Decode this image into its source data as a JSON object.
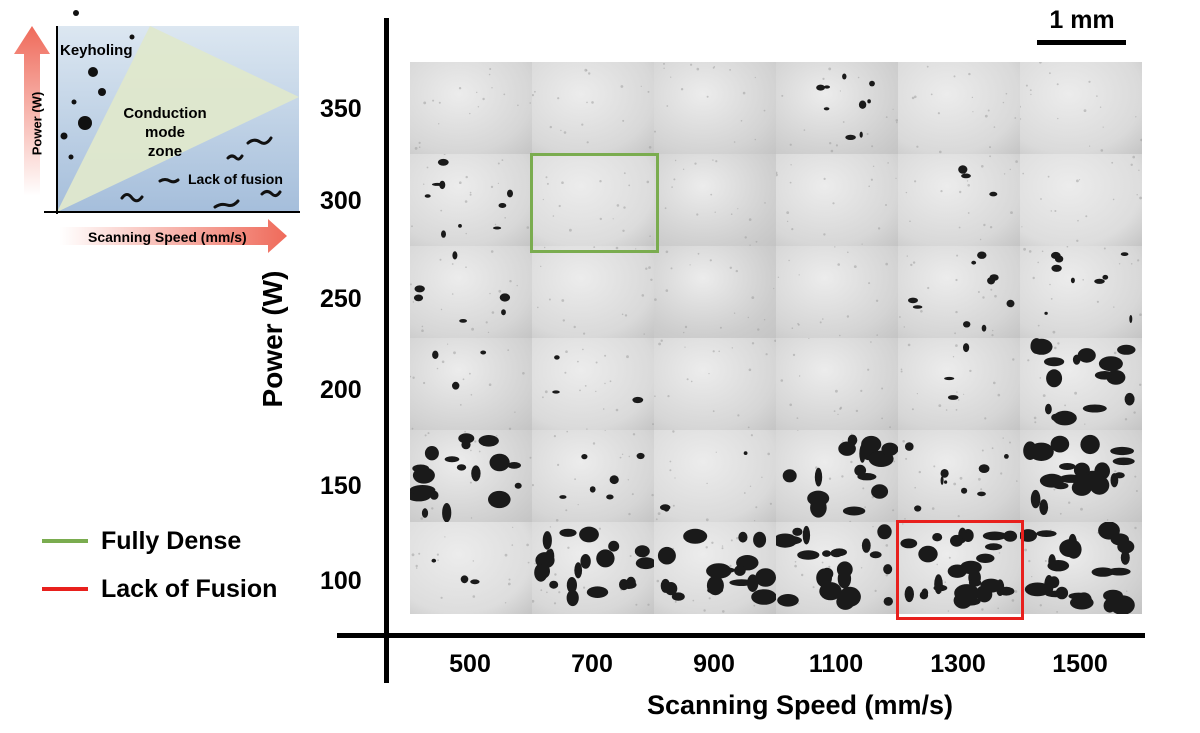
{
  "inset": {
    "keyholing": "Keyholing",
    "conduction": [
      "Conduction mode",
      "zone"
    ],
    "lack_of_fusion": "Lack of fusion",
    "y_label": "Power (W)",
    "x_label": "Scanning Speed (mm/s)"
  },
  "scale_bar": "1 mm",
  "y_axis": {
    "label": "Power (W)",
    "ticks": [
      "350",
      "300",
      "250",
      "200",
      "150",
      "100"
    ]
  },
  "x_axis": {
    "label": "Scanning Speed (mm/s)",
    "ticks": [
      "500",
      "700",
      "900",
      "1100",
      "1300",
      "1500"
    ]
  },
  "legend": [
    {
      "label": "Fully Dense",
      "color": "#7aac4f"
    },
    {
      "label": "Lack of Fusion",
      "color": "#e8201d"
    }
  ],
  "highlights": {
    "fully_dense": {
      "power": "300",
      "speed": "700",
      "color": "#7aac4f"
    },
    "lack_of_fusion": {
      "power": "100",
      "speed": "1300",
      "color": "#e8201d"
    }
  },
  "grid": {
    "tones": [
      [
        "#d6d6d6",
        "#d8d8d8",
        "#d3d3d3",
        "#d0d0d0",
        "#d9d9d9",
        "#dadada"
      ],
      [
        "#d8d8d8",
        "#dcdcdc",
        "#cfcfcf",
        "#d7d7d7",
        "#d8d8d8",
        "#dddddd"
      ],
      [
        "#d6d6d6",
        "#d9d9d9",
        "#cdcdcd",
        "#d4d4d4",
        "#d5d5d5",
        "#d8d8d8"
      ],
      [
        "#d2d2d2",
        "#dadada",
        "#d6d6d6",
        "#d3d3d3",
        "#d6d6d6",
        "#d8d8d8"
      ],
      [
        "#d1d1d1",
        "#d6d6d6",
        "#dadada",
        "#d4d4d4",
        "#d5d5d5",
        "#d3d3d3"
      ],
      [
        "#dddddd",
        "#d8d8d8",
        "#d9d9d9",
        "#d7d7d7",
        "#d8d8d8",
        "#d2d2d2"
      ]
    ],
    "porosity": [
      [
        0,
        0,
        0,
        3,
        0,
        0
      ],
      [
        3,
        0,
        0,
        0,
        1,
        0
      ],
      [
        2,
        0,
        0,
        0,
        3,
        3
      ],
      [
        1,
        1,
        0,
        0,
        1,
        5
      ],
      [
        6,
        2,
        1,
        5,
        3,
        7
      ],
      [
        1,
        7,
        6,
        7,
        9,
        8
      ]
    ]
  }
}
